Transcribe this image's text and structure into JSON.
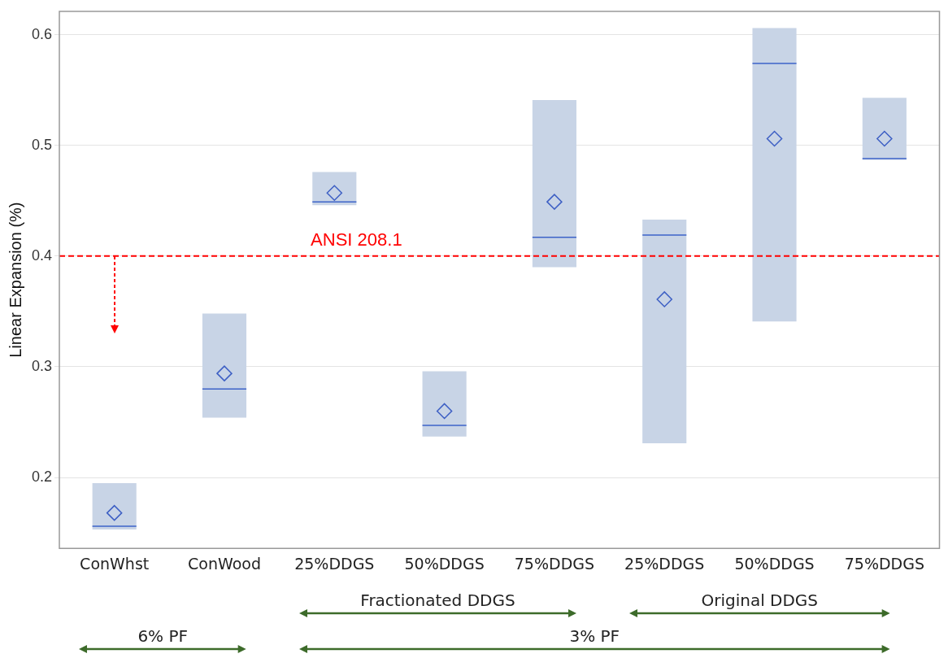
{
  "chart_data": {
    "type": "box",
    "ylabel": "Linear Expansion (%)",
    "categories": [
      "ConWhst",
      "ConWood",
      "25%DDGS",
      "50%DDGS",
      "75%DDGS",
      "25%DDGS",
      "50%DDGS",
      "75%DDGS"
    ],
    "boxes": [
      {
        "low": 0.153,
        "q1": 0.153,
        "median": 0.156,
        "q3": 0.195,
        "high": 0.195,
        "mean": 0.168
      },
      {
        "low": 0.254,
        "q1": 0.254,
        "median": 0.28,
        "q3": 0.348,
        "high": 0.348,
        "mean": 0.294
      },
      {
        "low": 0.446,
        "q1": 0.446,
        "median": 0.449,
        "q3": 0.476,
        "high": 0.476,
        "mean": 0.457
      },
      {
        "low": 0.237,
        "q1": 0.237,
        "median": 0.247,
        "q3": 0.296,
        "high": 0.296,
        "mean": 0.26
      },
      {
        "low": 0.39,
        "q1": 0.39,
        "median": 0.417,
        "q3": 0.541,
        "high": 0.541,
        "mean": 0.449
      },
      {
        "low": 0.231,
        "q1": 0.231,
        "median": 0.419,
        "q3": 0.433,
        "high": 0.433,
        "mean": 0.361
      },
      {
        "low": 0.341,
        "q1": 0.341,
        "median": 0.574,
        "q3": 0.606,
        "high": 0.606,
        "mean": 0.506
      },
      {
        "low": 0.487,
        "q1": 0.487,
        "median": 0.488,
        "q3": 0.543,
        "high": 0.543,
        "mean": 0.506
      }
    ],
    "color": "#c8d4e6",
    "ylim": [
      0.136,
      0.621
    ],
    "yticks": [
      0.2,
      0.3,
      0.4,
      0.5,
      0.6
    ],
    "grid": "y",
    "legend": false,
    "marker": "diamond",
    "ref_lines": [
      {
        "axis": "y",
        "value": 0.4,
        "label": "ANSI 208.1",
        "color": "#ff0000",
        "line_style": "dashed"
      }
    ],
    "annotations": [
      "Fractionated DDGS",
      "Original DDGS",
      "6% PF",
      "3% PF"
    ]
  }
}
